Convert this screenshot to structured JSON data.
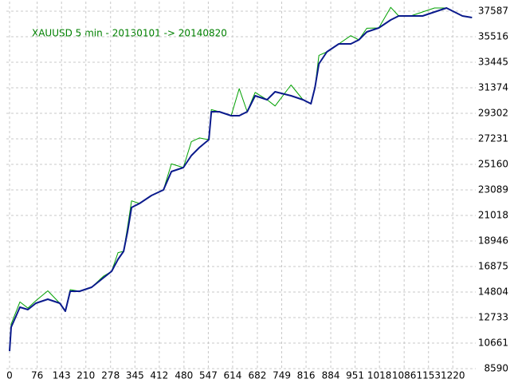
{
  "chart_data": {
    "type": "line",
    "title": "XAUUSD 5 min - 20130101 -> 20140820",
    "x": [
      0,
      4.4,
      28.5,
      50.5,
      72.4,
      105.3,
      138.2,
      153.6,
      166.8,
      193.1,
      226,
      258.9,
      280.9,
      298.4,
      313.8,
      324.8,
      335.7,
      357.7,
      390.6,
      423.5,
      445.4,
      478.4,
      500.3,
      522.3,
      548.6,
      555.2,
      577.1,
      610,
      632,
      653.9,
      675.9,
      708.8,
      730.7,
      774.6,
      807.5,
      829.5,
      840.4,
      851.4,
      873.4,
      906.3,
      939.2,
      961.2,
      983.1,
      1016,
      1048.9,
      1070.9,
      1103.8,
      1136.7,
      1169.6,
      1202.5,
      1224.5,
      1246.4,
      1272.8
    ],
    "series": [
      {
        "color": "#00a000",
        "values": [
          10014,
          12200,
          14000,
          13500,
          14100,
          14900,
          13900,
          13251,
          15000,
          14869,
          15192,
          16100,
          16487,
          18000,
          18105,
          20100,
          22200,
          21989,
          22636,
          23090,
          25200,
          24902,
          27000,
          27300,
          27168,
          29600,
          29433,
          29109,
          31300,
          29433,
          31000,
          30404,
          29900,
          31600,
          30404,
          30080,
          31375,
          34000,
          34288,
          34935,
          35600,
          35259,
          36200,
          36230,
          37900,
          37201,
          37201,
          37524,
          37848,
          37848,
          37524,
          37201,
          37071
        ]
      },
      {
        "color": "#0a1a8c",
        "values": [
          10014,
          11956,
          13574,
          13380,
          13898,
          14222,
          13898,
          13251,
          14869,
          14869,
          15192,
          15969,
          16487,
          17458,
          18105,
          19724,
          21665,
          21989,
          22636,
          23090,
          24578,
          24902,
          25873,
          26520,
          27168,
          29433,
          29433,
          29109,
          29109,
          29433,
          30728,
          30404,
          31051,
          30728,
          30404,
          30080,
          31375,
          33317,
          34288,
          34935,
          34935,
          35259,
          35906,
          36230,
          36877,
          37201,
          37201,
          37201,
          37524,
          37848,
          37524,
          37201,
          37071
        ]
      }
    ],
    "xlim": [
      0,
      1283
    ],
    "ylim": [
      8590,
      38364
    ],
    "xticks": [
      0,
      76,
      143,
      210,
      278,
      345,
      412,
      480,
      547,
      614,
      682,
      749,
      816,
      884,
      951,
      1018,
      1086,
      1153,
      1220
    ],
    "yticks": [
      8590,
      10661,
      12733,
      14804,
      16875,
      18946,
      21018,
      23089,
      25160,
      27231,
      29302,
      31374,
      33445,
      35516,
      37587
    ],
    "grid": true
  }
}
